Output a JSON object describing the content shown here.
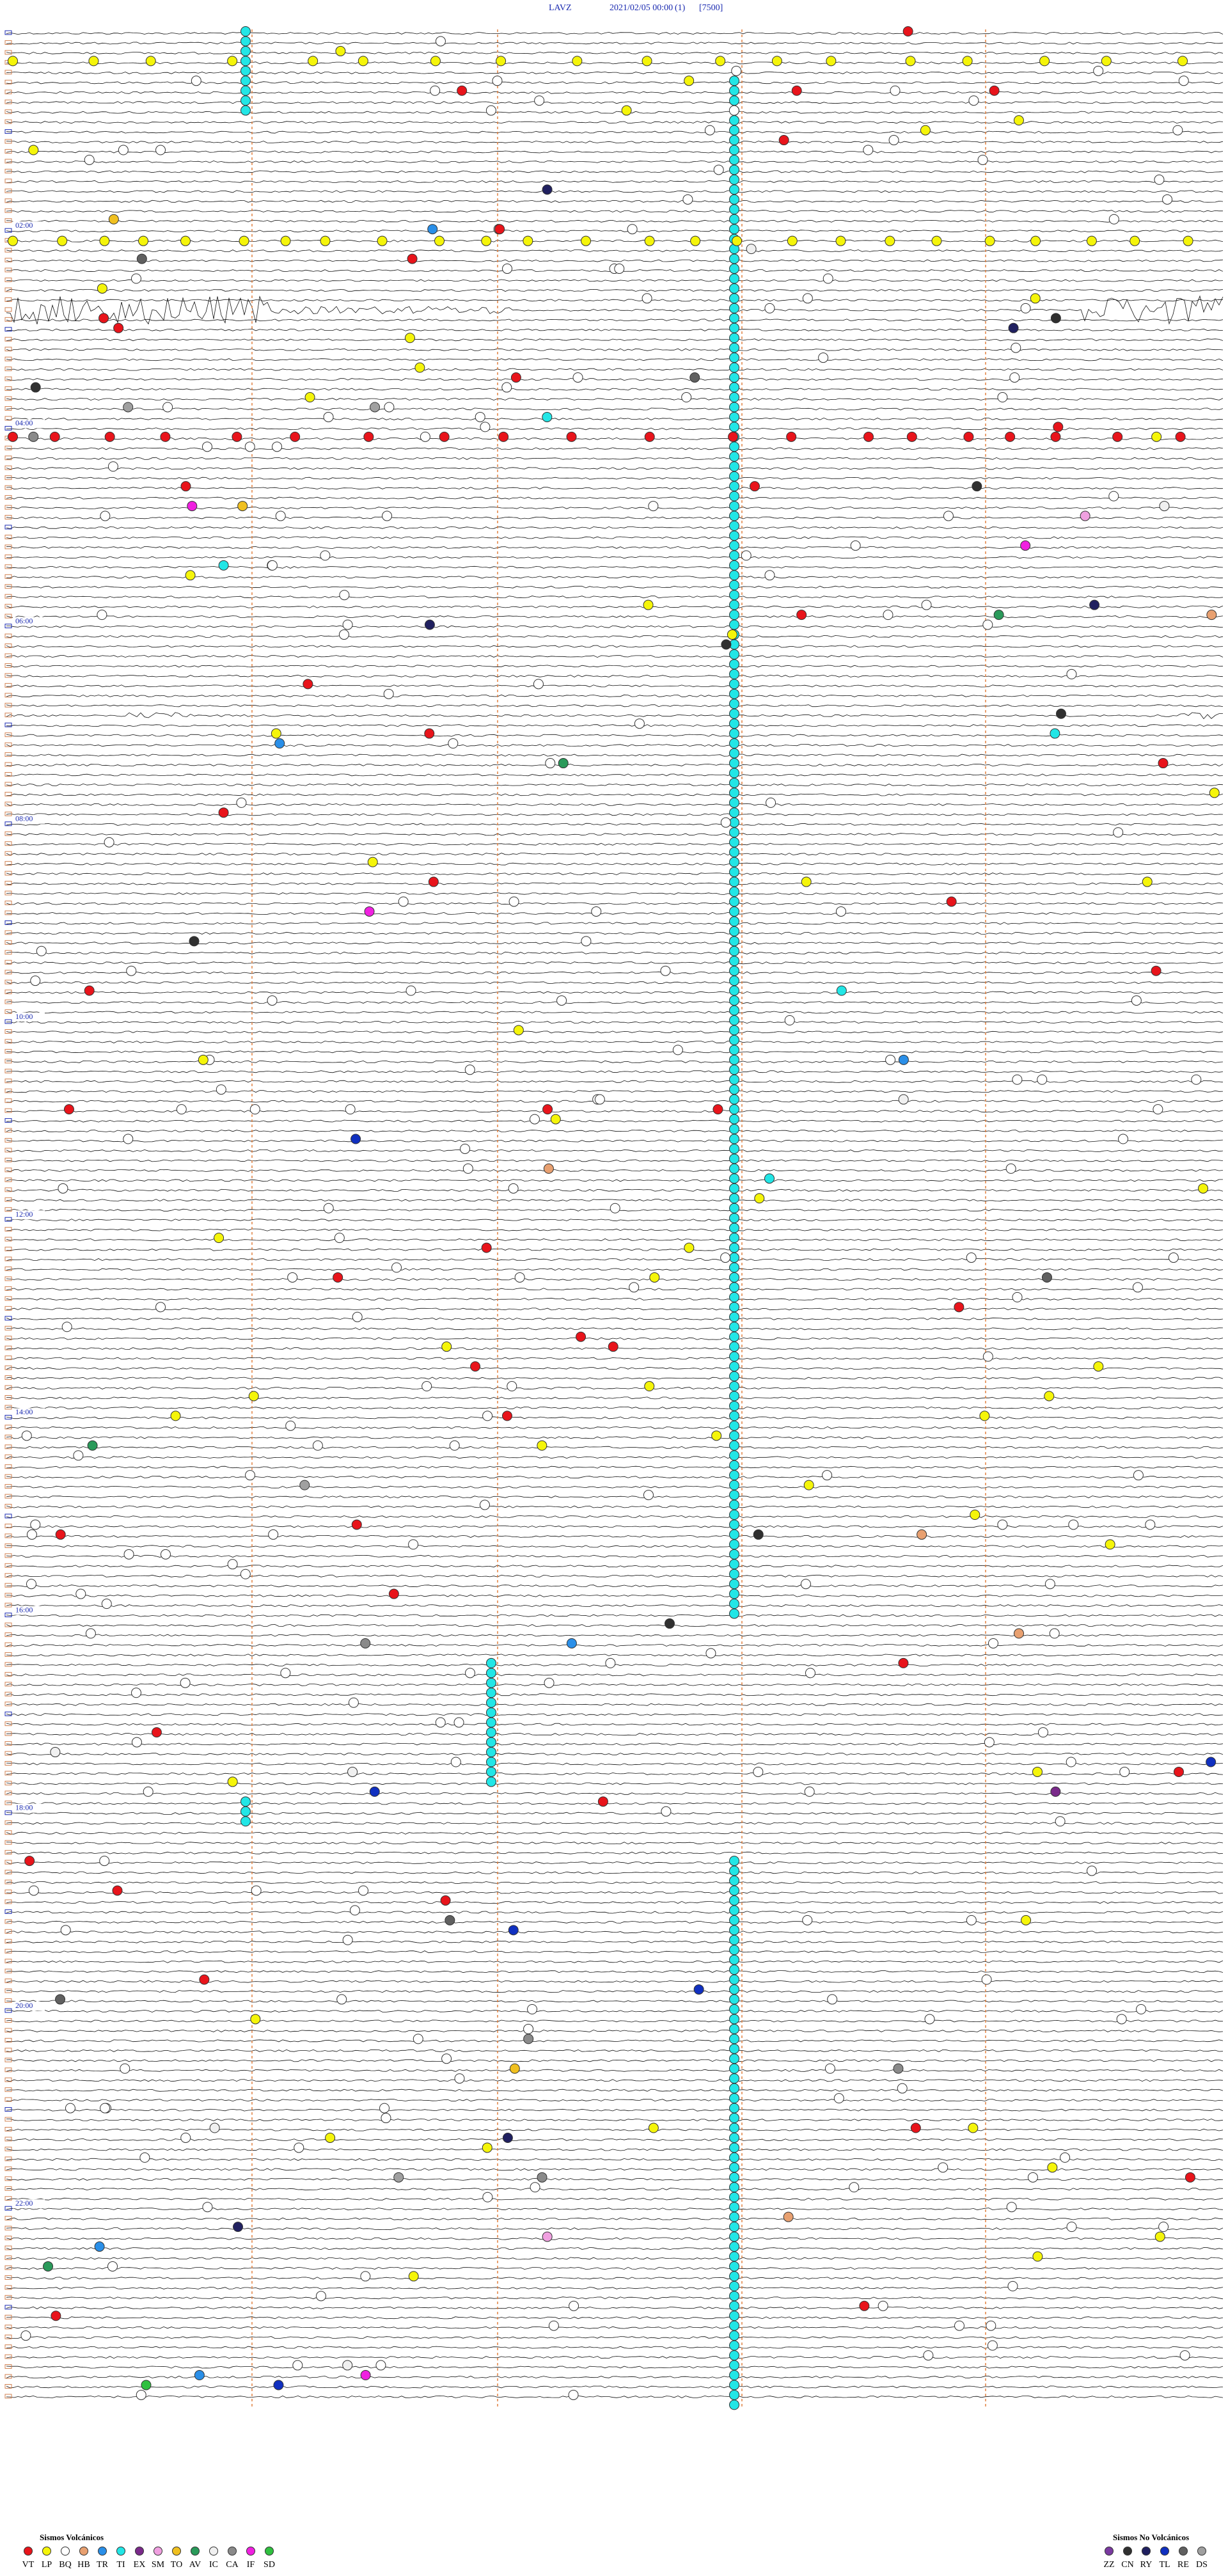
{
  "header": {
    "station": "LAVZ",
    "datetime": "2021/02/05 00:00",
    "channel": "(1)",
    "scale": "[7500]"
  },
  "hour_labels": [
    "02:00",
    "04:00",
    "06:00",
    "08:00",
    "10:00",
    "12:00",
    "14:00",
    "16:00",
    "18:00",
    "20:00",
    "22:00"
  ],
  "legend": [
    {
      "title": "Sismos Volcánicos",
      "items": [
        {
          "code": "VT",
          "color": "#e8141b"
        },
        {
          "code": "LP",
          "color": "#f5f50a"
        },
        {
          "code": "BQ",
          "color": "#ffffff"
        },
        {
          "code": "HB",
          "color": "#e8a070"
        },
        {
          "code": "TR",
          "color": "#2a8fe8"
        },
        {
          "code": "TI",
          "color": "#22e6e6"
        },
        {
          "code": "EX",
          "color": "#7a2a8a"
        },
        {
          "code": "SM",
          "color": "#f0a0e0"
        },
        {
          "code": "TO",
          "color": "#f0c020"
        },
        {
          "code": "AV",
          "color": "#2a9a5a"
        },
        {
          "code": "IC",
          "color": "#f0f0f0"
        },
        {
          "code": "CA",
          "color": "#8a8a8a"
        },
        {
          "code": "IF",
          "color": "#f020e0"
        },
        {
          "code": "SD",
          "color": "#30c040"
        }
      ]
    },
    {
      "title": "Sismos No Volcánicos",
      "items": [
        {
          "code": "ZZ",
          "color": "#7a3aa0"
        },
        {
          "code": "CN",
          "color": "#303030"
        },
        {
          "code": "RY",
          "color": "#202060"
        },
        {
          "code": "TL",
          "color": "#1030c0"
        },
        {
          "code": "RE",
          "color": "#606060"
        },
        {
          "code": "DS",
          "color": "#a0a0a0"
        }
      ]
    }
  ]
}
